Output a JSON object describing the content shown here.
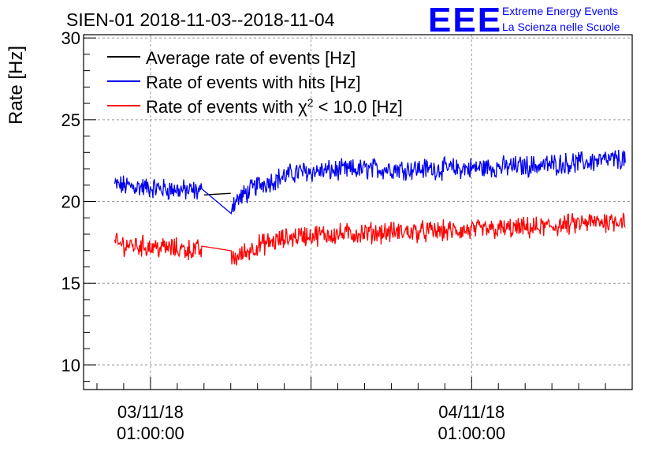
{
  "header": {
    "title": "SIEN-01 2018-11-03--2018-11-04",
    "logo_text": "EEE",
    "org_line1": "Extreme Energy Events",
    "org_line2": "La Scienza nelle Scuole"
  },
  "colors": {
    "average": "#000000",
    "hits": "#0000ee",
    "chi2": "#ff0000",
    "logo": "#0000ff",
    "grid": "#9a9a9a"
  },
  "chart_data": {
    "type": "line",
    "title": "SIEN-01 2018-11-03--2018-11-04",
    "xlabel": "",
    "ylabel": "Rate [Hz]",
    "ylim": [
      8.5,
      30.2
    ],
    "yticks": [
      10,
      15,
      20,
      25,
      30
    ],
    "xlim": [
      "2018-11-02 20:00",
      "2018-11-04 13:00"
    ],
    "xticks": [
      {
        "date": "03/11/18",
        "time": "01:00:00",
        "x": "2018-11-03 01:00"
      },
      {
        "date": "04/11/18",
        "time": "01:00:00",
        "x": "2018-11-04 01:00"
      }
    ],
    "grid": true,
    "legend_position": "top-left",
    "series": [
      {
        "name": "Average rate of events [Hz]",
        "color": "#000000",
        "noise": 0,
        "points": [
          [
            "2018-11-03 05:00",
            20.4
          ],
          [
            "2018-11-03 07:00",
            20.5
          ]
        ]
      },
      {
        "name": "Rate of events with hits [Hz]",
        "color": "#0000ee",
        "noise": 0.55,
        "points": [
          [
            "2018-11-02 22:20",
            21.0
          ],
          [
            "2018-11-03 04:50",
            20.6
          ],
          [
            "2018-11-03 07:00",
            19.8
          ],
          [
            "2018-11-03 09:00",
            21.0
          ],
          [
            "2018-11-03 12:00",
            21.8
          ],
          [
            "2018-11-03 18:00",
            22.0
          ],
          [
            "2018-11-04 00:00",
            22.0
          ],
          [
            "2018-11-04 06:00",
            22.2
          ],
          [
            "2018-11-04 12:30",
            22.6
          ]
        ]
      },
      {
        "name": "Rate of events with χ² < 10.0 [Hz]",
        "label_pre": "Rate of events with χ",
        "label_sup": "2",
        "label_post": " < 10.0 [Hz]",
        "color": "#ff0000",
        "noise": 0.55,
        "points": [
          [
            "2018-11-02 22:20",
            17.4
          ],
          [
            "2018-11-03 04:50",
            17.0
          ],
          [
            "2018-11-03 07:00",
            16.4
          ],
          [
            "2018-11-03 09:00",
            17.3
          ],
          [
            "2018-11-03 12:00",
            17.9
          ],
          [
            "2018-11-03 18:00",
            18.1
          ],
          [
            "2018-11-04 00:00",
            18.2
          ],
          [
            "2018-11-04 06:00",
            18.4
          ],
          [
            "2018-11-04 12:30",
            18.9
          ]
        ]
      }
    ]
  }
}
